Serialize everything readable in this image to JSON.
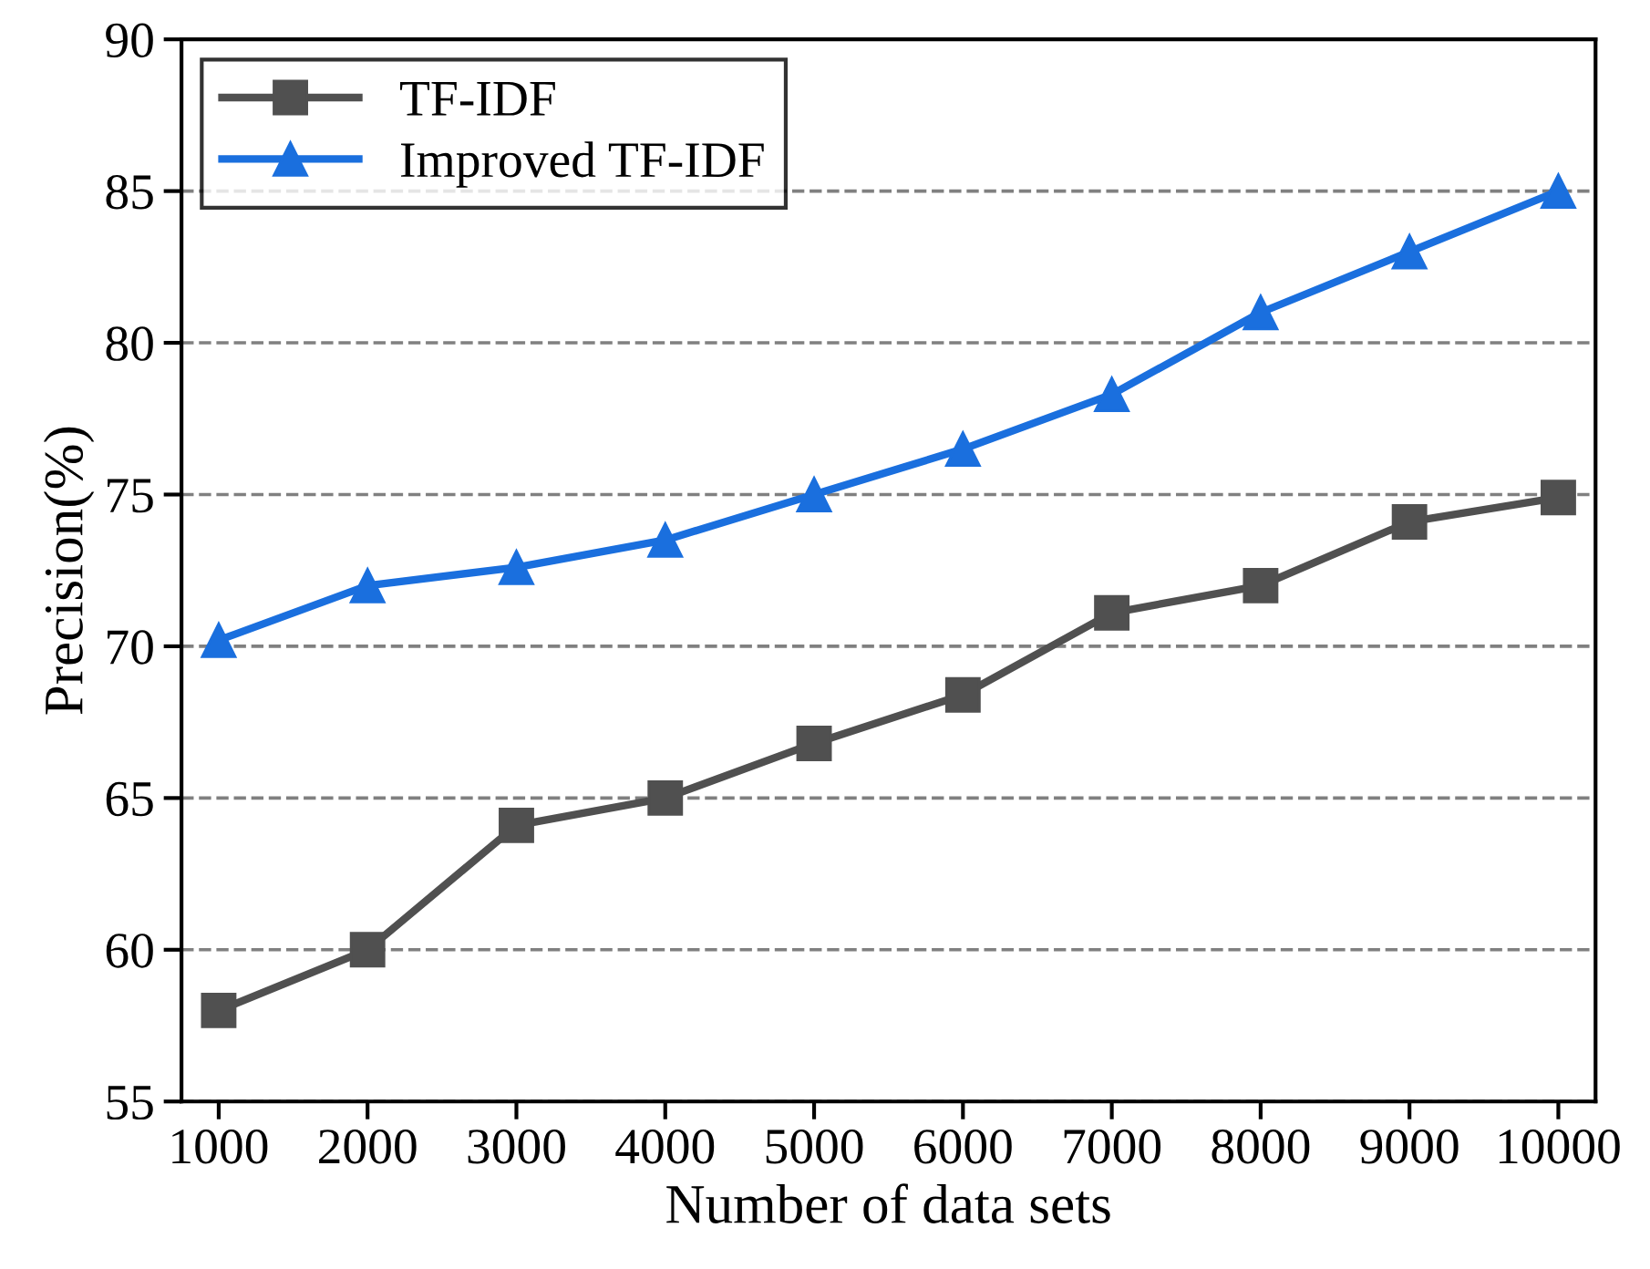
{
  "chart_data": {
    "type": "line",
    "xlabel": "Number of data sets",
    "ylabel": "Precision(%)",
    "x": [
      1000,
      2000,
      3000,
      4000,
      5000,
      6000,
      7000,
      8000,
      9000,
      10000
    ],
    "series": [
      {
        "name": "TF-IDF",
        "color": "#505050",
        "marker": "square",
        "values": [
          58.0,
          60.0,
          64.1,
          65.0,
          66.8,
          68.4,
          71.1,
          72.0,
          74.1,
          74.9
        ]
      },
      {
        "name": "Improved TF-IDF",
        "color": "#1a6fde",
        "marker": "triangle",
        "values": [
          70.2,
          72.0,
          72.6,
          73.5,
          75.0,
          76.5,
          78.3,
          81.0,
          83.0,
          85.0
        ]
      }
    ],
    "xlim": [
      750,
      10250
    ],
    "xticks": [
      1000,
      2000,
      3000,
      4000,
      5000,
      6000,
      7000,
      8000,
      9000,
      10000
    ],
    "ylim": [
      55,
      90
    ],
    "yticks": [
      55,
      60,
      65,
      70,
      75,
      80,
      85,
      90
    ],
    "grid": "y",
    "legend": "top left",
    "line_style": "solid"
  }
}
